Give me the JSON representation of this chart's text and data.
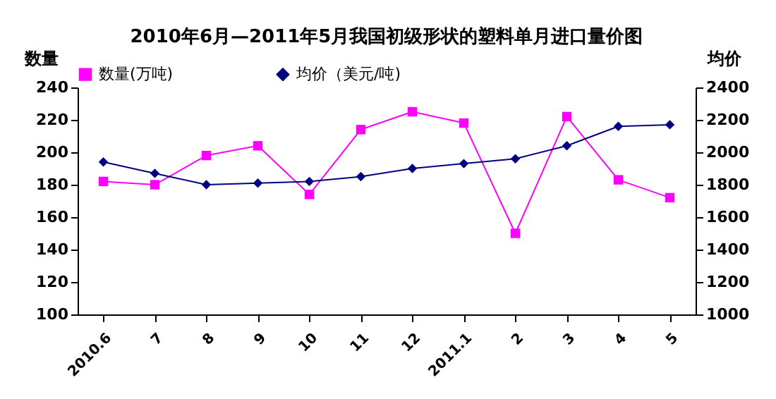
{
  "chart_data": {
    "type": "line",
    "title": "2010年6月—2011年5月我国初级形状的塑料单月进口量价图",
    "ylabel": "数量",
    "y2label": "均价",
    "categories": [
      "2010.6",
      "7",
      "8",
      "9",
      "10",
      "11",
      "12",
      "2011.1",
      "2",
      "3",
      "4",
      "5"
    ],
    "series": [
      {
        "name": "数量(万吨)",
        "color": "#ff00ff",
        "marker": "square",
        "values": [
          182,
          180,
          198,
          204,
          174,
          214,
          225,
          218,
          150,
          222,
          183,
          172
        ]
      },
      {
        "name": "均价（美元/吨)",
        "color": "#000080",
        "marker": "diamond",
        "axis": "y2",
        "values": [
          1940,
          1870,
          1800,
          1810,
          1820,
          1850,
          1900,
          1930,
          1960,
          2040,
          2160,
          2170
        ]
      }
    ],
    "ylim": [
      100,
      240
    ],
    "yticks": [
      100,
      120,
      140,
      160,
      180,
      200,
      220,
      240
    ],
    "y2lim": [
      1000,
      2400
    ],
    "y2ticks": [
      1000,
      1200,
      1400,
      1600,
      1800,
      2000,
      2200,
      2400
    ],
    "grid": false,
    "legend": "top"
  }
}
